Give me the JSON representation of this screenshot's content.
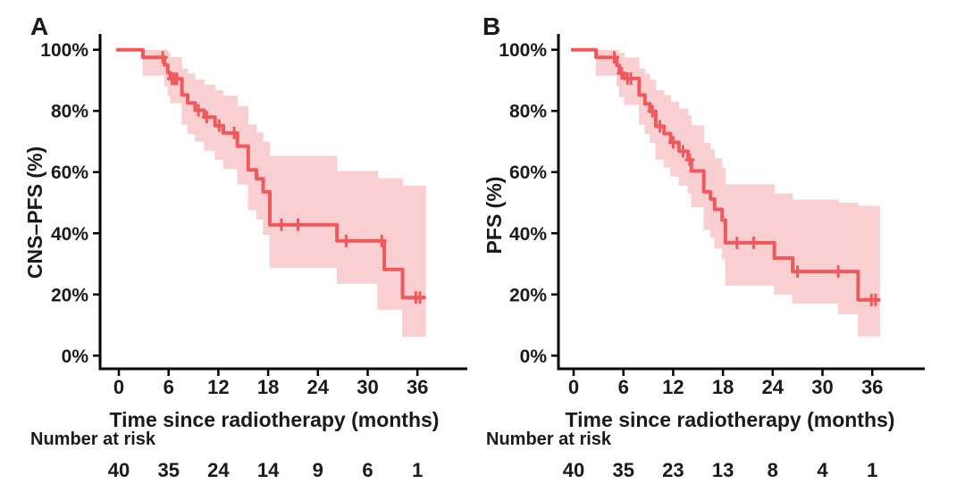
{
  "figure": {
    "colors": {
      "line": "#EE5A5C",
      "band": "#F9CFD1",
      "axis": "#000000",
      "text": "#1A1A1A"
    }
  },
  "chart_data": [
    {
      "type": "line",
      "subtype": "kaplan-meier-step",
      "panel_label": "A",
      "title": "",
      "xlabel": "Time since radiotherapy (months)",
      "ylabel": "CNS–PFS (%)",
      "xlim": [
        0,
        38
      ],
      "ylim": [
        0,
        100
      ],
      "grid": false,
      "legend": "none",
      "x_ticks": [
        "0",
        "6",
        "12",
        "18",
        "24",
        "30",
        "36"
      ],
      "x_tick_values": [
        0,
        6,
        12,
        18,
        24,
        30,
        36
      ],
      "y_ticks": [
        "100%",
        "80%",
        "60%",
        "40%",
        "20%",
        "0%"
      ],
      "y_tick_values": [
        100,
        80,
        60,
        40,
        20,
        0
      ],
      "number_at_risk": {
        "label": "Number at risk",
        "times": [
          0,
          6,
          12,
          18,
          24,
          30,
          36
        ],
        "counts": [
          "40",
          "35",
          "24",
          "14",
          "9",
          "6",
          "1"
        ]
      },
      "series": [
        {
          "name": "CNS-PFS",
          "color": "#EE5A5C",
          "x_end": 37.0,
          "steps": [
            [
              0,
              100
            ],
            [
              2.9,
              97.5
            ],
            [
              5.5,
              95
            ],
            [
              5.9,
              92.5
            ],
            [
              6.2,
              90.5
            ],
            [
              7.6,
              85.2
            ],
            [
              8.3,
              82.6
            ],
            [
              9.2,
              80.2
            ],
            [
              10.3,
              78
            ],
            [
              11.6,
              75.2
            ],
            [
              12.6,
              72.8
            ],
            [
              14.3,
              68.5
            ],
            [
              15.6,
              60.7
            ],
            [
              16.6,
              57.8
            ],
            [
              17.4,
              53.6
            ],
            [
              18.2,
              42.8
            ],
            [
              26.3,
              37.5
            ],
            [
              32,
              28.2
            ],
            [
              34.2,
              19
            ]
          ],
          "censor_marks": [
            [
              5.3,
              97.5
            ],
            [
              6.4,
              90.5
            ],
            [
              6.7,
              90.5
            ],
            [
              7.0,
              90.5
            ],
            [
              9.6,
              80.2
            ],
            [
              10.6,
              78
            ],
            [
              12.1,
              75.2
            ],
            [
              13.9,
              72.8
            ],
            [
              19.6,
              42.8
            ],
            [
              21.6,
              42.8
            ],
            [
              27.4,
              37.5
            ],
            [
              31.7,
              37.5
            ],
            [
              35.8,
              19
            ],
            [
              36.3,
              19
            ]
          ],
          "conf_band": [
            [
              2.9,
              5.5,
              100,
              91.5
            ],
            [
              5.5,
              5.9,
              100,
              88
            ],
            [
              5.9,
              6.2,
              99.2,
              85
            ],
            [
              6.2,
              7.6,
              97.6,
              82.5
            ],
            [
              7.6,
              8.3,
              93.8,
              75.5
            ],
            [
              8.3,
              9.2,
              92.2,
              72.5
            ],
            [
              9.2,
              10.3,
              90.3,
              70
            ],
            [
              10.3,
              11.6,
              88.6,
              67
            ],
            [
              11.6,
              12.6,
              86.8,
              64
            ],
            [
              12.6,
              14.3,
              85,
              61
            ],
            [
              14.3,
              15.6,
              81.6,
              56
            ],
            [
              15.6,
              16.6,
              75.6,
              47.5
            ],
            [
              16.6,
              17.4,
              73,
              44.5
            ],
            [
              17.4,
              18.2,
              70,
              39.5
            ],
            [
              18.2,
              26.3,
              65.3,
              28.7
            ],
            [
              26.3,
              31.2,
              60.4,
              23.5
            ],
            [
              31.2,
              34.2,
              58,
              15
            ],
            [
              34.2,
              37,
              55.6,
              6.2
            ]
          ]
        }
      ]
    },
    {
      "type": "line",
      "subtype": "kaplan-meier-step",
      "panel_label": "B",
      "title": "",
      "xlabel": "Time since radiotherapy (months)",
      "ylabel": "PFS (%)",
      "xlim": [
        0,
        38
      ],
      "ylim": [
        0,
        100
      ],
      "grid": false,
      "legend": "none",
      "x_ticks": [
        "0",
        "6",
        "12",
        "18",
        "24",
        "30",
        "36"
      ],
      "x_tick_values": [
        0,
        6,
        12,
        18,
        24,
        30,
        36
      ],
      "y_ticks": [
        "100%",
        "80%",
        "60%",
        "40%",
        "20%",
        "0%"
      ],
      "y_tick_values": [
        100,
        80,
        60,
        40,
        20,
        0
      ],
      "number_at_risk": {
        "label": "Number at risk",
        "times": [
          0,
          6,
          12,
          18,
          24,
          30,
          36
        ],
        "counts": [
          "40",
          "35",
          "23",
          "13",
          "8",
          "4",
          "1"
        ]
      },
      "series": [
        {
          "name": "PFS",
          "color": "#EE5A5C",
          "x_end": 36.9,
          "steps": [
            [
              0,
              100
            ],
            [
              2.7,
              97.5
            ],
            [
              5.2,
              94.9
            ],
            [
              5.5,
              92.3
            ],
            [
              6.1,
              90.6
            ],
            [
              7.9,
              85.2
            ],
            [
              8.6,
              82.3
            ],
            [
              9.2,
              79.9
            ],
            [
              9.9,
              75
            ],
            [
              10.9,
              72.6
            ],
            [
              11.7,
              69.7
            ],
            [
              12.7,
              66.8
            ],
            [
              13.8,
              64
            ],
            [
              14.2,
              60.4
            ],
            [
              15.7,
              53.6
            ],
            [
              16.5,
              51.2
            ],
            [
              17.0,
              47.8
            ],
            [
              17.9,
              44.3
            ],
            [
              18.3,
              36.9
            ],
            [
              24.2,
              31.9
            ],
            [
              26.4,
              27.5
            ],
            [
              34.3,
              18.2
            ]
          ],
          "censor_marks": [
            [
              4.9,
              97.5
            ],
            [
              5.8,
              92.3
            ],
            [
              6.5,
              90.6
            ],
            [
              6.9,
              90.6
            ],
            [
              9.5,
              79.9
            ],
            [
              10.4,
              75
            ],
            [
              12.0,
              69.7
            ],
            [
              13.2,
              66.8
            ],
            [
              14.0,
              64
            ],
            [
              19.7,
              36.9
            ],
            [
              21.7,
              36.9
            ],
            [
              27.0,
              27.5
            ],
            [
              31.9,
              27.5
            ],
            [
              35.9,
              18.2
            ],
            [
              36.4,
              18.2
            ]
          ],
          "conf_band": [
            [
              2.7,
              5.2,
              100,
              91.5
            ],
            [
              5.2,
              5.5,
              100,
              88
            ],
            [
              5.5,
              6.1,
              99,
              84.5
            ],
            [
              6.1,
              7.9,
              97.5,
              82
            ],
            [
              7.9,
              8.6,
              93.8,
              75.5
            ],
            [
              8.6,
              9.2,
              92.2,
              72.5
            ],
            [
              9.2,
              9.9,
              90.2,
              69.5
            ],
            [
              9.9,
              10.9,
              86.8,
              64
            ],
            [
              10.9,
              11.7,
              85.2,
              61.5
            ],
            [
              11.7,
              12.7,
              83,
              58.5
            ],
            [
              12.7,
              13.8,
              80.8,
              55.5
            ],
            [
              13.8,
              14.2,
              78.5,
              53
            ],
            [
              14.2,
              15.7,
              75.3,
              48.5
            ],
            [
              15.7,
              16.5,
              69.6,
              41
            ],
            [
              16.5,
              17,
              67.5,
              38.5
            ],
            [
              17,
              17.9,
              64.5,
              35
            ],
            [
              17.9,
              18.3,
              61.5,
              31.5
            ],
            [
              18.3,
              24.2,
              56,
              22.9
            ],
            [
              24.2,
              26.4,
              53,
              20
            ],
            [
              26.4,
              31.9,
              51,
              17
            ],
            [
              31.9,
              34.3,
              50,
              13.5
            ],
            [
              34.3,
              36.9,
              49,
              6.3
            ]
          ]
        }
      ]
    }
  ]
}
